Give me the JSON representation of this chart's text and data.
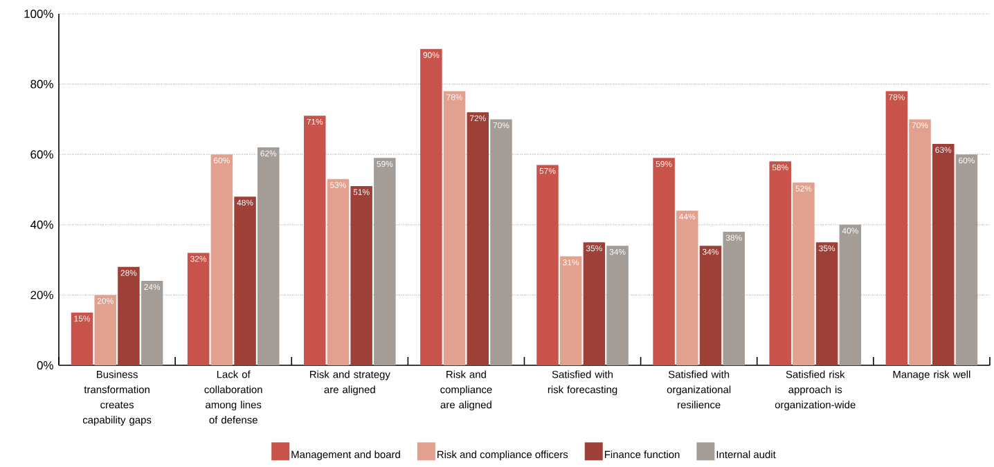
{
  "chart_data": {
    "type": "bar",
    "categories": [
      "Business transformation creates capability gaps",
      "Lack of collaboration among lines of defense",
      "Risk and strategy are aligned",
      "Risk and compliance are aligned",
      "Satisfied with risk forecasting",
      "Satisfied with organizational resilience",
      "Satisfied risk approach is organization-wide",
      "Manage risk well"
    ],
    "series": [
      {
        "name": "Management and board",
        "color": "#c8534a",
        "values": [
          15,
          32,
          71,
          90,
          57,
          59,
          58,
          78
        ],
        "value_labels": [
          "15%",
          "32%",
          "71%",
          "90%",
          "57%",
          "59%",
          "58%",
          "78%"
        ]
      },
      {
        "name": "Risk and compliance officers",
        "color": "#e2a08e",
        "values": [
          20,
          60,
          53,
          78,
          31,
          44,
          52,
          70
        ],
        "value_labels": [
          "20%",
          "60%",
          "53%",
          "78%",
          "31%",
          "44%",
          "52%",
          "70%"
        ]
      },
      {
        "name": "Finance function",
        "color": "#9e4038",
        "values": [
          28,
          48,
          51,
          72,
          35,
          34,
          35,
          63
        ],
        "value_labels": [
          "28%",
          "48%",
          "51%",
          "72%",
          "35%",
          "34%",
          "35%",
          "63%"
        ]
      },
      {
        "name": "Internal audit",
        "color": "#a39c97",
        "values": [
          24,
          62,
          59,
          70,
          34,
          38,
          40,
          60
        ],
        "value_labels": [
          "24%",
          "62%",
          "59%",
          "70%",
          "34%",
          "38%",
          "40%",
          "60%"
        ]
      }
    ],
    "ylim": [
      0,
      100
    ],
    "yticks": [
      {
        "value": 0,
        "label": "0%"
      },
      {
        "value": 20,
        "label": "20%"
      },
      {
        "value": 40,
        "label": "40%"
      },
      {
        "value": 60,
        "label": "60%"
      },
      {
        "value": 80,
        "label": "80%"
      },
      {
        "value": 100,
        "label": "100%"
      }
    ],
    "grid": "y",
    "legend": "bottom"
  }
}
